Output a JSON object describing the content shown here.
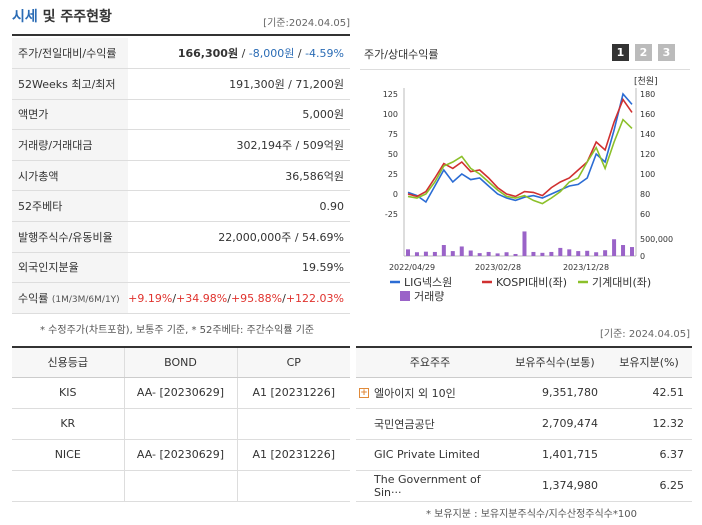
{
  "header": {
    "title_a": "시세",
    "title_b": " 및 주주현황",
    "date": "[기준:2024.04.05]"
  },
  "quote_rows": [
    {
      "key": "주가/전일대비/수익률",
      "price": "166,300원",
      "sep1": " / ",
      "change": "-8,000원",
      "sep2": " / ",
      "rate": "-4.59%"
    },
    {
      "key": "52Weeks 최고/최저",
      "value": "191,300원 / 71,200원"
    },
    {
      "key": "액면가",
      "value": "5,000원"
    },
    {
      "key": "거래량/거래대금",
      "value": "302,194주 / 509억원"
    },
    {
      "key": "시가총액",
      "value": "36,586억원"
    },
    {
      "key": "52주베타",
      "value": "0.90"
    },
    {
      "key": "발행주식수/유동비율",
      "value": "22,000,000주 / 54.69%"
    },
    {
      "key": "외국인지분율",
      "value": "19.59%"
    },
    {
      "key": "수익률",
      "key_sub": "(1M/3M/6M/1Y)",
      "r1": "+9.19%",
      "r2": "+34.98%",
      "r3": "+95.88%",
      "r4": "+122.03%",
      "sep": "/"
    }
  ],
  "note_left": "* 수정주가(차트포함), 보통주 기준, * 52주베타: 주간수익률 기준",
  "chart_panel": {
    "title": "주가/상대수익률",
    "pages": [
      "1",
      "2",
      "3"
    ],
    "colors": {
      "active": "#333333",
      "inactive": "#bbbbbb"
    }
  },
  "chart_data": {
    "type": "line",
    "title": "",
    "left_axis": {
      "ticks": [
        "125",
        "100",
        "75",
        "50",
        "25",
        "0",
        "-25"
      ],
      "range": [
        -25,
        125
      ]
    },
    "right_axis": {
      "unit": "[천원]",
      "ticks": [
        "180",
        "160",
        "140",
        "120",
        "100",
        "80",
        "60"
      ],
      "range": [
        60,
        180
      ]
    },
    "volume_axis": {
      "ticks": [
        "500,000",
        "0"
      ],
      "range": [
        0,
        900000
      ]
    },
    "x_ticks": [
      "2022/04/29",
      "2023/02/28",
      "2023/12/28"
    ],
    "series": [
      {
        "name": "LIG넥스원",
        "color": "#2b6cd4",
        "values": [
          2,
          -2,
          -10,
          10,
          30,
          15,
          25,
          18,
          20,
          10,
          0,
          -5,
          -8,
          -4,
          -2,
          -5,
          0,
          5,
          10,
          12,
          20,
          50,
          40,
          80,
          125,
          112
        ]
      },
      {
        "name": "KOSPI대비(좌)",
        "color": "#d03030",
        "values": [
          0,
          -3,
          3,
          20,
          38,
          32,
          40,
          28,
          30,
          20,
          8,
          0,
          -3,
          3,
          2,
          -2,
          8,
          15,
          20,
          30,
          40,
          65,
          55,
          90,
          118,
          102
        ]
      },
      {
        "name": "기계대비(좌)",
        "color": "#8cc02a",
        "values": [
          -3,
          -5,
          0,
          15,
          35,
          40,
          47,
          32,
          25,
          15,
          5,
          -3,
          -5,
          -2,
          -8,
          -12,
          -5,
          3,
          15,
          20,
          40,
          58,
          32,
          65,
          93,
          82
        ]
      }
    ],
    "volume": {
      "name": "거래량",
      "color": "#9a63c8",
      "values": [
        230000,
        130000,
        150000,
        140000,
        380000,
        170000,
        330000,
        190000,
        100000,
        140000,
        90000,
        130000,
        70000,
        850000,
        140000,
        110000,
        140000,
        280000,
        230000,
        170000,
        180000,
        130000,
        200000,
        580000,
        380000,
        310000
      ]
    }
  },
  "credit": {
    "headers": [
      "신용등급",
      "BOND",
      "CP"
    ],
    "rows": [
      [
        "KIS",
        "AA-  [20230629]",
        "A1  [20231226]"
      ],
      [
        "KR",
        "",
        ""
      ],
      [
        "NICE",
        "AA-  [20230629]",
        "A1  [20231226]"
      ],
      [
        "",
        "",
        ""
      ]
    ]
  },
  "shareholders": {
    "date": "[기준: 2024.04.05]",
    "headers": [
      "주요주주",
      "보유주식수(보통)",
      "보유지분(%)"
    ],
    "rows": [
      {
        "name": "엘아이지 외 10인",
        "shares": "9,351,780",
        "pct": "42.51",
        "expand": "+"
      },
      {
        "name": "국민연금공단",
        "shares": "2,709,474",
        "pct": "12.32"
      },
      {
        "name": "GIC Private Limited",
        "shares": "1,401,715",
        "pct": "6.37"
      },
      {
        "name": "The Government of Sin···",
        "shares": "1,374,980",
        "pct": "6.25"
      }
    ],
    "note": "* 보유지분 : 보유지분주식수/지수산정주식수*100"
  }
}
